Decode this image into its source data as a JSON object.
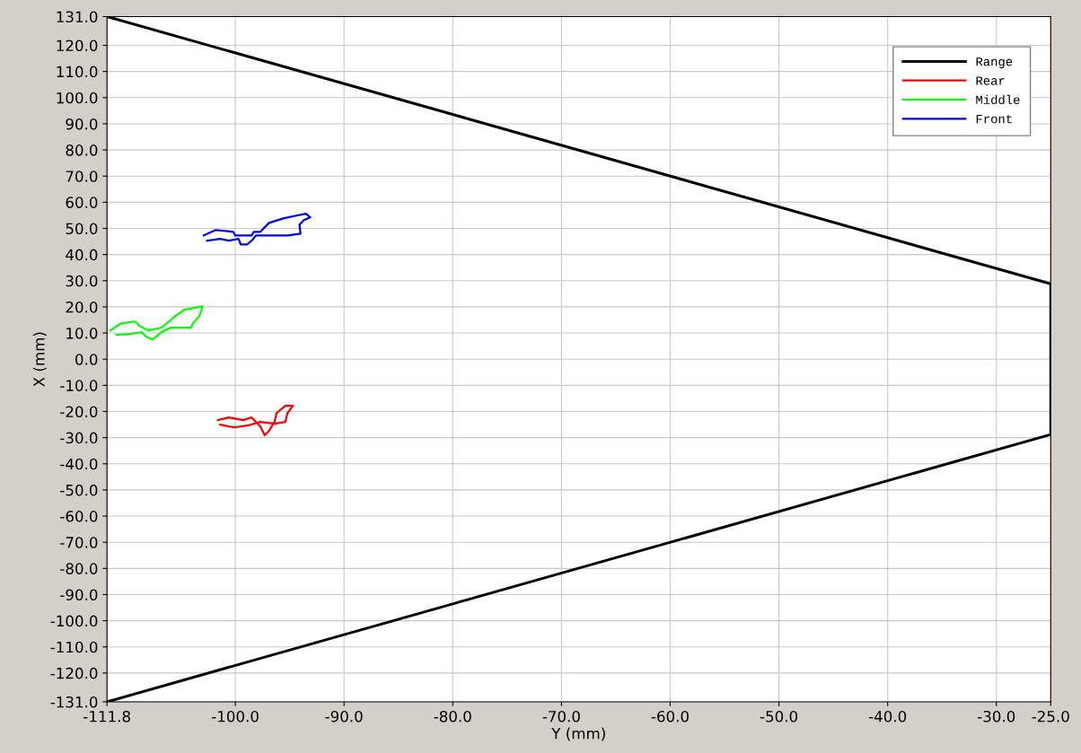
{
  "chart_data": {
    "type": "line",
    "xlabel": "Y (mm)",
    "ylabel": "X (mm)",
    "xlim": [
      -111.8,
      -25.0
    ],
    "ylim": [
      -131.0,
      131.0
    ],
    "xticks": [
      {
        "value": -111.8,
        "label": "-111.8"
      },
      {
        "value": -100,
        "label": "-100.0"
      },
      {
        "value": -90,
        "label": "-90.0"
      },
      {
        "value": -80,
        "label": "-80.0"
      },
      {
        "value": -70,
        "label": "-70.0"
      },
      {
        "value": -60,
        "label": "-60.0"
      },
      {
        "value": -50,
        "label": "-50.0"
      },
      {
        "value": -40,
        "label": "-40.0"
      },
      {
        "value": -30,
        "label": "-30.0"
      },
      {
        "value": -25,
        "label": "-25.0"
      }
    ],
    "yticks": [
      {
        "value": -131,
        "label": "-131.0"
      },
      {
        "value": -120,
        "label": "-120.0"
      },
      {
        "value": -110,
        "label": "-110.0"
      },
      {
        "value": -100,
        "label": "-100.0"
      },
      {
        "value": -90,
        "label": "-90.0"
      },
      {
        "value": -80,
        "label": "-80.0"
      },
      {
        "value": -70,
        "label": "-70.0"
      },
      {
        "value": -60,
        "label": "-60.0"
      },
      {
        "value": -50,
        "label": "-50.0"
      },
      {
        "value": -40,
        "label": "-40.0"
      },
      {
        "value": -30,
        "label": "-30.0"
      },
      {
        "value": -20,
        "label": "-20.0"
      },
      {
        "value": -10,
        "label": "-10.0"
      },
      {
        "value": 0,
        "label": "0.0"
      },
      {
        "value": 10,
        "label": "10.0"
      },
      {
        "value": 20,
        "label": "20.0"
      },
      {
        "value": 30,
        "label": "30.0"
      },
      {
        "value": 40,
        "label": "40.0"
      },
      {
        "value": 50,
        "label": "50.0"
      },
      {
        "value": 60,
        "label": "60.0"
      },
      {
        "value": 70,
        "label": "70.0"
      },
      {
        "value": 80,
        "label": "80.0"
      },
      {
        "value": 90,
        "label": "90.0"
      },
      {
        "value": 100,
        "label": "100.0"
      },
      {
        "value": 110,
        "label": "110.0"
      },
      {
        "value": 120,
        "label": "120.0"
      },
      {
        "value": 131,
        "label": "131.0"
      }
    ],
    "grid": true,
    "legend": "top right",
    "marker": "none",
    "line_style": "solid",
    "series": [
      {
        "name": "Range",
        "color": "#000000",
        "x": [
          -111.8,
          -25.0,
          -25.0,
          -111.8
        ],
        "values": [
          131.0,
          28.8,
          -28.8,
          -131.0
        ]
      },
      {
        "name": "Rear",
        "color": "#ff0000",
        "x": [
          -101.6,
          -100.6,
          -99.3,
          -98.5,
          -97.7,
          -97.3,
          -96.9,
          -96.4,
          -96.2,
          -95.4,
          -94.7,
          -95.2,
          -95.4,
          -96.4,
          -97.7,
          -98.9,
          -100.1,
          -101.4
        ],
        "values": [
          -23.3,
          -22.3,
          -23.3,
          -22.3,
          -25.7,
          -29.1,
          -27.4,
          -24.0,
          -20.6,
          -17.8,
          -17.8,
          -20.6,
          -24.0,
          -24.7,
          -24.0,
          -25.4,
          -26.1,
          -25.0
        ]
      },
      {
        "name": "Middle",
        "color": "#00ff00",
        "x": [
          -111.5,
          -110.5,
          -109.2,
          -108.8,
          -108.0,
          -106.8,
          -105.5,
          -104.7,
          -103.0,
          -103.3,
          -103.9,
          -104.1,
          -106.0,
          -106.8,
          -107.6,
          -108.2,
          -108.6,
          -109.7,
          -110.9
        ],
        "values": [
          11.0,
          13.7,
          14.4,
          12.7,
          11.0,
          12.0,
          16.5,
          18.9,
          20.2,
          16.5,
          13.7,
          12.0,
          12.0,
          10.3,
          7.5,
          8.6,
          10.3,
          9.6,
          9.3
        ]
      },
      {
        "name": "Front",
        "color": "#0000ff",
        "x": [
          -102.9,
          -101.8,
          -100.2,
          -100.0,
          -98.5,
          -98.3,
          -97.7,
          -96.9,
          -95.6,
          -94.4,
          -93.5,
          -93.1,
          -93.7,
          -94.1,
          -94.0,
          -95.2,
          -96.9,
          -98.1,
          -98.5,
          -98.9,
          -99.5,
          -99.7,
          -100.6,
          -101.4,
          -102.6
        ],
        "values": [
          47.3,
          49.4,
          48.7,
          47.3,
          47.3,
          48.7,
          48.7,
          52.1,
          53.8,
          54.9,
          55.6,
          54.2,
          53.2,
          51.4,
          48.0,
          47.3,
          47.3,
          47.3,
          45.3,
          43.9,
          43.9,
          46.0,
          45.3,
          46.0,
          45.3
        ]
      }
    ]
  }
}
